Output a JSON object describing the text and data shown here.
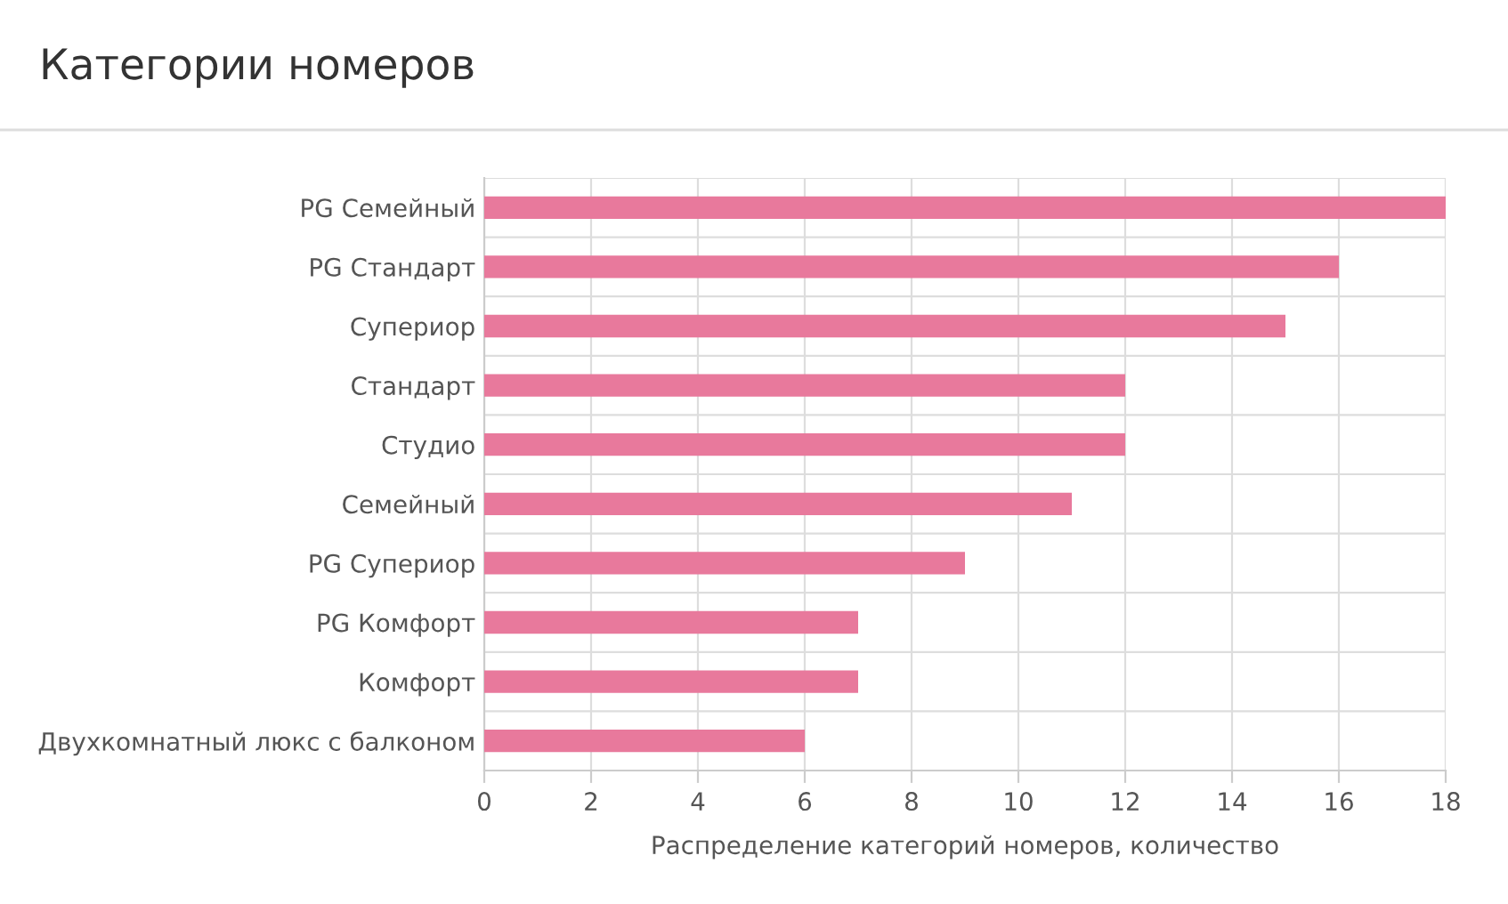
{
  "chart_data": {
    "type": "bar",
    "orientation": "horizontal",
    "title": "Категории номеров",
    "xlabel": "Распределение категорий номеров, количество",
    "categories": [
      "PG Семейный",
      "PG Стандарт",
      "Супериор",
      "Стандарт",
      "Студио",
      "Семейный",
      "PG Супериор",
      "PG Комфорт",
      "Комфорт",
      "Двухкомнатный люкс с балконом"
    ],
    "values": [
      18,
      16,
      15,
      12,
      12,
      11,
      9,
      7,
      7,
      6
    ],
    "color": "#e8799c",
    "xlim": [
      0,
      18
    ],
    "xticks": [
      0,
      2,
      4,
      6,
      8,
      10,
      12,
      14,
      16,
      18
    ],
    "grid": true,
    "legend": false
  }
}
